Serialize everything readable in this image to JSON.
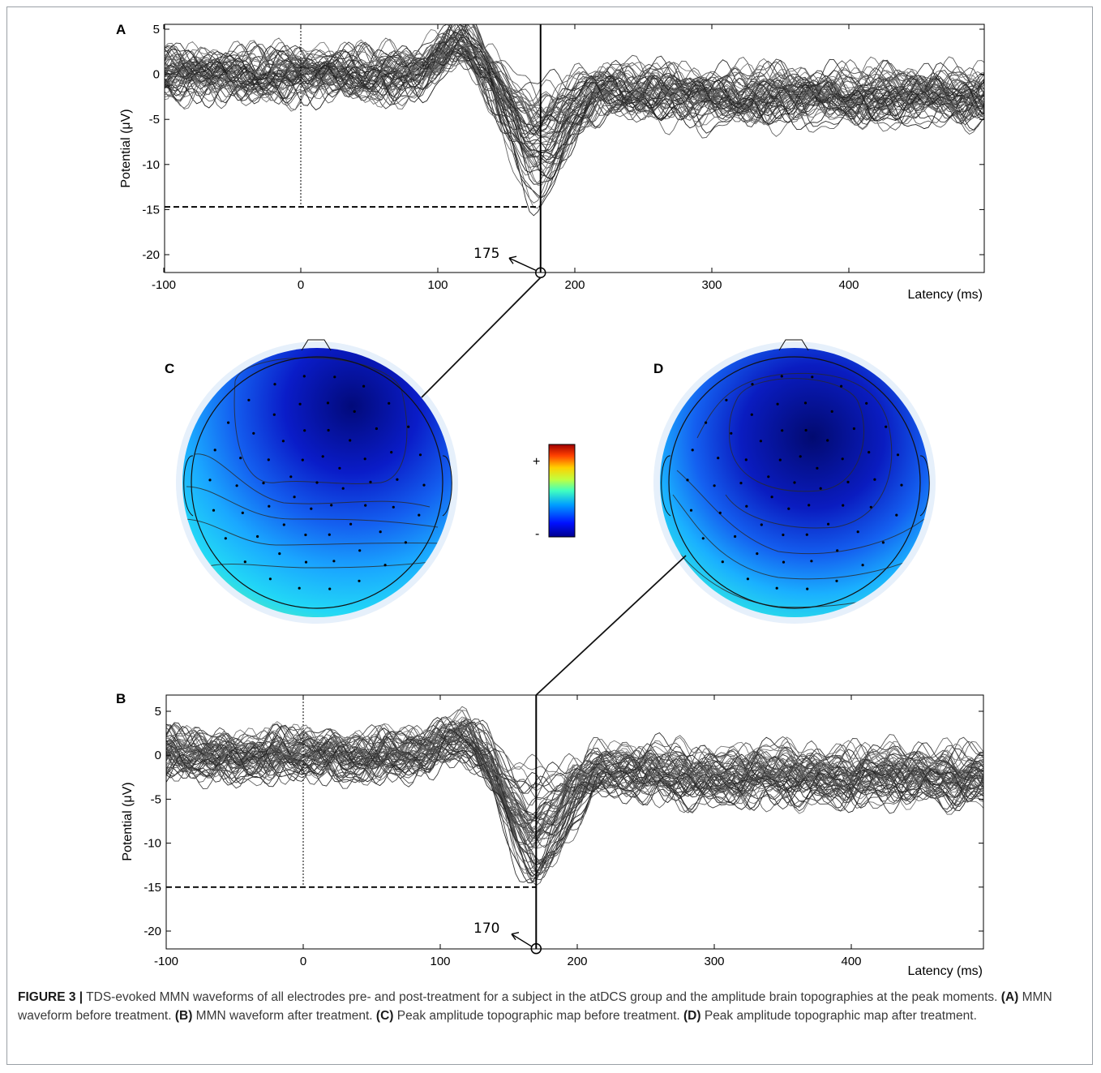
{
  "figure": {
    "panels": [
      {
        "id": "A",
        "label": "A",
        "ylabel": "Potential (μV)",
        "xlabel": "Latency (ms)",
        "peak_latency": "175"
      },
      {
        "id": "B",
        "label": "B",
        "ylabel": "Potential (μV)",
        "xlabel": "Latency (ms)",
        "peak_latency": "170"
      },
      {
        "id": "C",
        "label": "C"
      },
      {
        "id": "D",
        "label": "D"
      }
    ],
    "colorbar": {
      "plus": "+",
      "minus": "-"
    }
  },
  "chart_data": [
    {
      "type": "line",
      "panel": "A",
      "description_visible": "MMN waveforms of all electrodes, before treatment",
      "xlabel": "Latency (ms)",
      "ylabel": "Potential (μV)",
      "xlim": [
        -100,
        500
      ],
      "ylim": [
        -22,
        6
      ],
      "xticks": [
        -100,
        0,
        100,
        200,
        300,
        400
      ],
      "yticks": [
        5,
        0,
        -5,
        -10,
        -15,
        -20
      ],
      "peak": {
        "x": 175,
        "y": -22
      },
      "threshold_y": -14.7,
      "grid": false
    },
    {
      "type": "line",
      "panel": "B",
      "xlabel": "Latency (ms)",
      "ylabel": "Potential (μV)",
      "xlim": [
        -100,
        500
      ],
      "ylim": [
        -22,
        6.5
      ],
      "xticks": [
        -100,
        0,
        100,
        200,
        300,
        400
      ],
      "yticks": [
        5,
        0,
        -5,
        -10,
        -15,
        -20
      ],
      "peak": {
        "x": 170,
        "y": -22
      },
      "threshold_y": -15,
      "grid": false
    }
  ],
  "caption": {
    "figure_label": "FIGURE 3 |",
    "intro": " TDS-evoked MMN waveforms of all electrodes pre- and post-treatment for a subject in the atDCS group and the amplitude brain topographies at the peak moments. ",
    "a_tag": "(A)",
    "a_text": " MMN waveform before treatment. ",
    "b_tag": "(B)",
    "b_text": " MMN waveform after treatment. ",
    "c_tag": "(C)",
    "c_text": " Peak amplitude topographic map before treatment. ",
    "d_tag": "(D)",
    "d_text": " Peak amplitude topographic map after treatment."
  }
}
